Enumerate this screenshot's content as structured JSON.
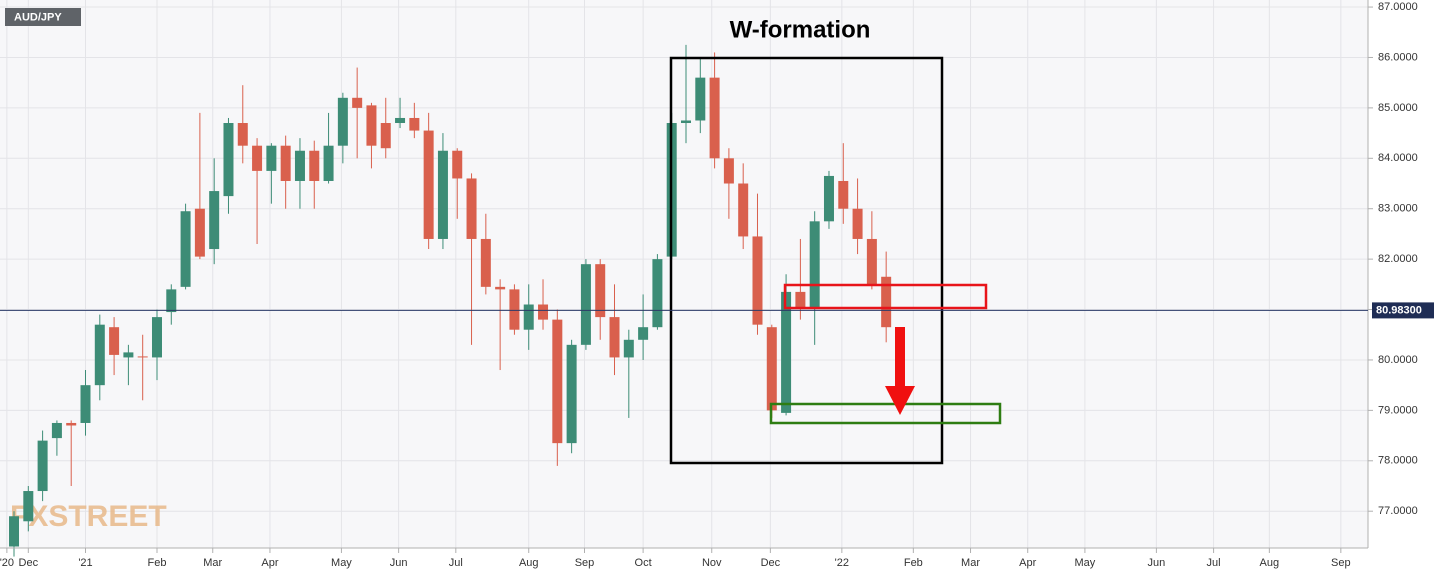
{
  "chart_data": {
    "type": "candlestick",
    "symbol": "AUD/JPY",
    "title": "W-formation",
    "watermark": "FXSTREET",
    "up_color": "#3d8c76",
    "down_color": "#d9604d",
    "grid": true,
    "open": [
      76.3,
      76.8,
      77.4,
      78.45,
      78.75,
      78.75,
      79.5,
      80.65,
      80.05,
      80.07,
      80.05,
      80.95,
      81.45,
      83.0,
      82.2,
      83.25,
      84.7,
      84.25,
      83.75,
      84.25,
      83.55,
      84.15,
      83.55,
      84.25,
      85.2,
      85.05,
      84.7,
      84.7,
      84.8,
      84.55,
      82.4,
      84.15,
      83.6,
      82.4,
      81.45,
      81.4,
      80.6,
      81.1,
      80.8,
      78.35,
      80.3,
      81.9,
      80.85,
      80.05,
      80.4,
      80.65,
      82.05,
      84.7,
      84.75,
      85.6,
      84.0,
      83.5,
      82.45,
      80.65,
      78.95,
      81.35,
      81.05,
      82.75,
      83.55,
      83.0,
      82.4,
      81.65
    ],
    "high": [
      77.0,
      77.5,
      78.6,
      78.8,
      78.8,
      79.8,
      80.9,
      80.85,
      80.3,
      80.5,
      81.0,
      81.5,
      83.1,
      84.9,
      84.0,
      84.8,
      85.45,
      84.4,
      84.3,
      84.45,
      84.4,
      84.35,
      84.9,
      85.3,
      85.8,
      85.1,
      85.2,
      85.2,
      85.1,
      84.9,
      84.5,
      84.2,
      83.7,
      82.9,
      81.6,
      81.5,
      81.5,
      81.6,
      81.0,
      80.4,
      82.0,
      82.0,
      81.5,
      80.6,
      81.3,
      82.1,
      84.9,
      86.25,
      86.0,
      86.1,
      84.2,
      83.9,
      83.3,
      80.7,
      81.7,
      82.4,
      82.95,
      83.75,
      84.3,
      83.6,
      82.95,
      82.15
    ],
    "low": [
      76.1,
      76.6,
      77.2,
      78.1,
      77.5,
      78.5,
      79.2,
      79.7,
      79.5,
      79.2,
      79.6,
      80.7,
      81.4,
      82.0,
      81.9,
      82.9,
      83.9,
      82.3,
      83.1,
      83.0,
      83.0,
      83.0,
      83.5,
      83.9,
      84.0,
      83.8,
      84.0,
      84.6,
      84.4,
      82.2,
      82.2,
      82.8,
      80.3,
      81.3,
      79.8,
      80.5,
      80.2,
      80.6,
      77.9,
      78.15,
      80.2,
      80.4,
      79.7,
      78.85,
      80.0,
      80.6,
      82.0,
      84.3,
      84.5,
      83.8,
      82.8,
      82.2,
      80.5,
      78.85,
      78.9,
      80.8,
      80.3,
      82.6,
      82.7,
      82.1,
      81.4,
      80.35
    ],
    "close": [
      76.9,
      77.4,
      78.4,
      78.75,
      78.7,
      79.5,
      80.7,
      80.1,
      80.15,
      80.05,
      80.85,
      81.4,
      82.95,
      82.05,
      83.35,
      84.7,
      84.25,
      83.75,
      84.25,
      83.55,
      84.15,
      83.55,
      84.25,
      85.2,
      85.0,
      84.25,
      84.2,
      84.8,
      84.55,
      82.4,
      84.15,
      83.6,
      82.4,
      81.45,
      81.4,
      80.6,
      81.1,
      80.8,
      78.35,
      80.3,
      81.9,
      80.85,
      80.05,
      80.4,
      80.65,
      82.0,
      84.7,
      84.75,
      85.6,
      84.0,
      83.5,
      82.45,
      80.7,
      79.0,
      81.35,
      81.05,
      82.75,
      83.65,
      83.0,
      82.4,
      81.5,
      80.65
    ],
    "last_price": {
      "value": 80.983,
      "label": "80.98300"
    },
    "xlim": [
      -0.98,
      94.7
    ],
    "xticks": [
      {
        "value": -0.5,
        "label": "'20"
      },
      {
        "value": 1,
        "label": "Dec"
      },
      {
        "value": 5,
        "label": "'21"
      },
      {
        "value": 10,
        "label": "Feb"
      },
      {
        "value": 13.9,
        "label": "Mar"
      },
      {
        "value": 17.9,
        "label": "Apr"
      },
      {
        "value": 22.9,
        "label": "May"
      },
      {
        "value": 26.9,
        "label": "Jun"
      },
      {
        "value": 30.9,
        "label": "Jul"
      },
      {
        "value": 36,
        "label": "Aug"
      },
      {
        "value": 39.9,
        "label": "Sep"
      },
      {
        "value": 44,
        "label": "Oct"
      },
      {
        "value": 48.8,
        "label": "Nov"
      },
      {
        "value": 52.9,
        "label": "Dec"
      },
      {
        "value": 57.9,
        "label": "'22"
      },
      {
        "value": 62.9,
        "label": "Feb"
      },
      {
        "value": 66.9,
        "label": "Mar"
      },
      {
        "value": 70.9,
        "label": "Apr"
      },
      {
        "value": 74.9,
        "label": "May"
      },
      {
        "value": 79.9,
        "label": "Jun"
      },
      {
        "value": 83.9,
        "label": "Jul"
      },
      {
        "value": 87.8,
        "label": "Aug"
      },
      {
        "value": 92.8,
        "label": "Sep"
      }
    ],
    "ylim": [
      76.27,
      87.14
    ],
    "yticks": [
      {
        "value": 77,
        "label": "77.0000"
      },
      {
        "value": 78,
        "label": "78.0000"
      },
      {
        "value": 79,
        "label": "79.0000"
      },
      {
        "value": 80,
        "label": "80.0000"
      },
      {
        "value": 81,
        "label": "81.0000"
      },
      {
        "value": 82,
        "label": "82.0000"
      },
      {
        "value": 83,
        "label": "83.0000"
      },
      {
        "value": 84,
        "label": "84.0000"
      },
      {
        "value": 85,
        "label": "85.0000"
      },
      {
        "value": 86,
        "label": "86.0000"
      },
      {
        "value": 87,
        "label": "87.0000"
      }
    ]
  }
}
